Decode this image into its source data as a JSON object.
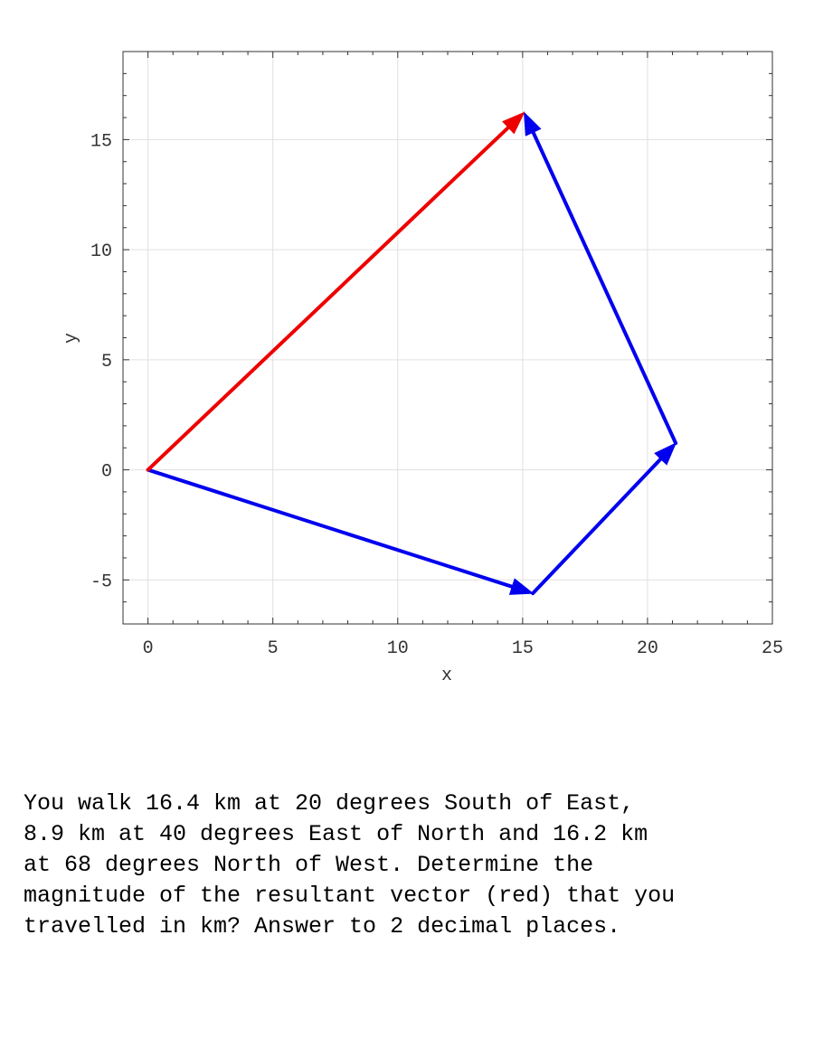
{
  "chart_data": {
    "type": "vector-diagram",
    "xlabel": "x",
    "ylabel": "y",
    "xlim": [
      -1,
      25
    ],
    "ylim": [
      -7,
      19
    ],
    "x_ticks": [
      0,
      5,
      10,
      15,
      20,
      25
    ],
    "y_ticks": [
      -5,
      0,
      5,
      10,
      15
    ],
    "grid": true,
    "vectors": [
      {
        "from": [
          0,
          0
        ],
        "to": [
          15.41,
          -5.61
        ],
        "color": "#0000ee"
      },
      {
        "from": [
          15.41,
          -5.61
        ],
        "to": [
          21.13,
          1.21
        ],
        "color": "#0000ee"
      },
      {
        "from": [
          21.13,
          1.21
        ],
        "to": [
          15.06,
          16.23
        ],
        "color": "#0000ee"
      },
      {
        "from": [
          0,
          0
        ],
        "to": [
          15.06,
          16.23
        ],
        "color": "#ee0000"
      }
    ]
  },
  "question": {
    "text": "You walk 16.4 km at 20 degrees South of East,\n8.9 km at 40 degrees East of North and 16.2 km\nat 68 degrees North of West.  Determine the\nmagnitude of the resultant vector (red) that you\ntravelled in km? Answer to 2 decimal places."
  }
}
